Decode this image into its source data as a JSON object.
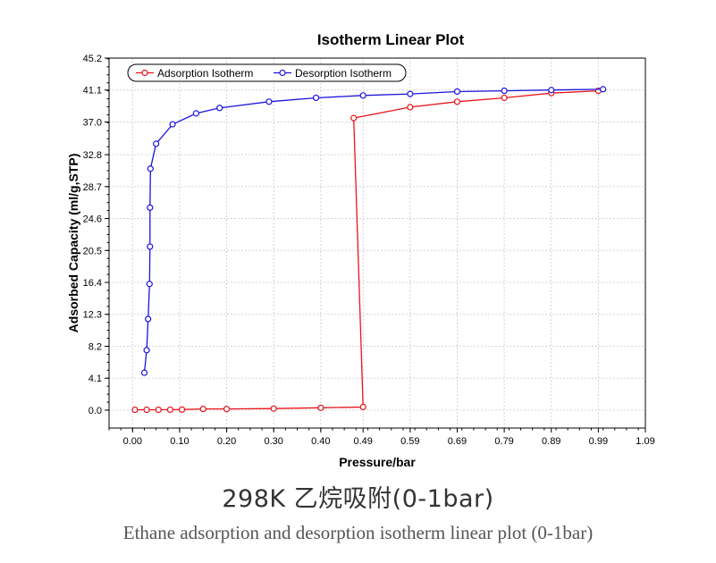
{
  "chart_data": {
    "type": "line",
    "title": "Isotherm Linear Plot",
    "xlabel": "Pressure/bar",
    "ylabel": "Adsorbed Capacity (ml/g,STP)",
    "xlim": [
      -0.05,
      1.09
    ],
    "ylim": [
      -2.3,
      45.2
    ],
    "xticks": [
      "0.00",
      "0.10",
      "0.20",
      "0.30",
      "0.40",
      "0.49",
      "0.59",
      "0.69",
      "0.79",
      "0.89",
      "0.99",
      "1.09"
    ],
    "xtick_values": [
      0.0,
      0.1,
      0.2,
      0.3,
      0.4,
      0.49,
      0.59,
      0.69,
      0.79,
      0.89,
      0.99,
      1.09
    ],
    "yticks": [
      "0.0",
      "4.1",
      "8.2",
      "12.3",
      "16.4",
      "20.5",
      "24.6",
      "28.7",
      "32.8",
      "37.0",
      "41.1",
      "45.2"
    ],
    "ytick_values": [
      0.0,
      4.1,
      8.2,
      12.3,
      16.4,
      20.5,
      24.6,
      28.7,
      32.8,
      37.0,
      41.1,
      45.2
    ],
    "grid": true,
    "legend_position": "top-left",
    "series": [
      {
        "name": "Adsorption Isotherm",
        "color": "#e8141c",
        "points": [
          [
            0.005,
            0.05
          ],
          [
            0.03,
            0.05
          ],
          [
            0.055,
            0.05
          ],
          [
            0.08,
            0.06
          ],
          [
            0.105,
            0.07
          ],
          [
            0.15,
            0.15
          ],
          [
            0.2,
            0.15
          ],
          [
            0.3,
            0.2
          ],
          [
            0.4,
            0.3
          ],
          [
            0.49,
            0.4
          ],
          [
            0.47,
            37.5
          ],
          [
            0.59,
            38.9
          ],
          [
            0.69,
            39.6
          ],
          [
            0.79,
            40.1
          ],
          [
            0.89,
            40.7
          ],
          [
            0.99,
            41.0
          ]
        ]
      },
      {
        "name": "Desorption Isotherm",
        "color": "#1c14dc",
        "points": [
          [
            0.025,
            4.8
          ],
          [
            0.03,
            7.7
          ],
          [
            0.033,
            11.7
          ],
          [
            0.036,
            16.2
          ],
          [
            0.037,
            21.0
          ],
          [
            0.037,
            26.0
          ],
          [
            0.038,
            31.0
          ],
          [
            0.05,
            34.2
          ],
          [
            0.085,
            36.7
          ],
          [
            0.135,
            38.1
          ],
          [
            0.185,
            38.8
          ],
          [
            0.29,
            39.6
          ],
          [
            0.39,
            40.1
          ],
          [
            0.49,
            40.4
          ],
          [
            0.59,
            40.6
          ],
          [
            0.69,
            40.9
          ],
          [
            0.79,
            41.0
          ],
          [
            0.89,
            41.1
          ],
          [
            1.0,
            41.2
          ]
        ]
      }
    ]
  },
  "caption": {
    "main": "298K 乙烷吸附(0-1bar)",
    "sub": "Ethane adsorption and desorption isotherm linear plot (0-1bar)"
  }
}
